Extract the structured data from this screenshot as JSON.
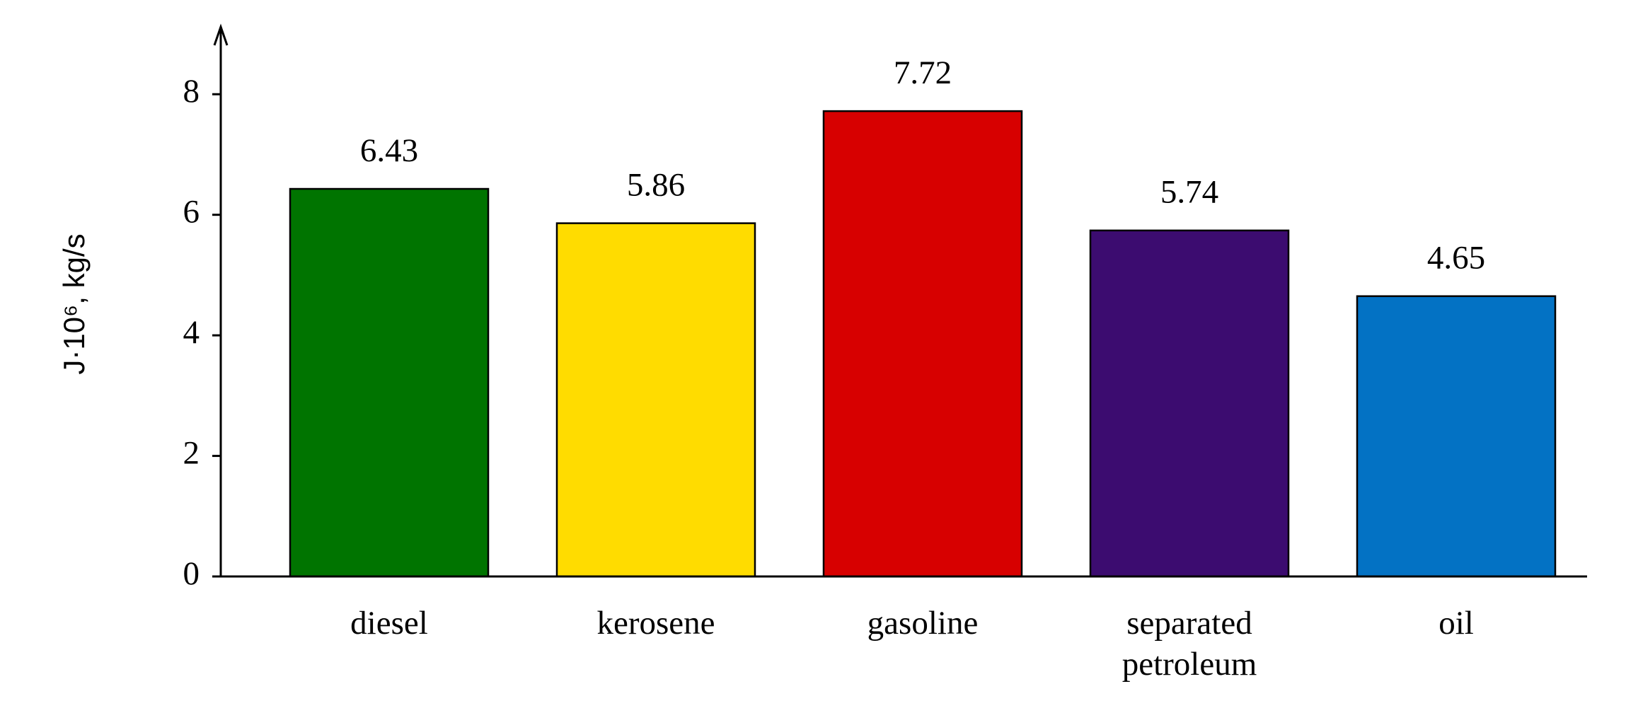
{
  "chart_data": {
    "type": "bar",
    "y_label": "J·10⁶, kg/s",
    "categories": [
      "diesel",
      "kerosene",
      "gasoline",
      "separated petroleum",
      "oil"
    ],
    "values": [
      6.43,
      5.86,
      7.72,
      5.74,
      4.65
    ],
    "colors": [
      "#007400",
      "#ffdc00",
      "#d70000",
      "#3c0c70",
      "#0372c4"
    ],
    "ylim": [
      0,
      9
    ],
    "yticks": [
      0,
      2,
      4,
      6,
      8
    ],
    "grid": false
  }
}
